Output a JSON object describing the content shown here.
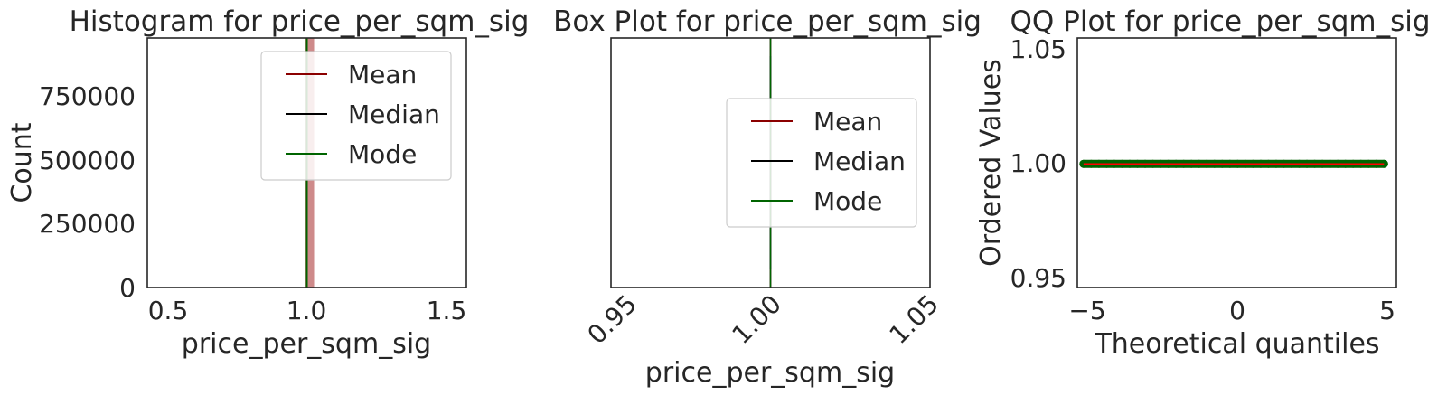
{
  "chart_data": [
    {
      "type": "bar",
      "title": "Histogram for price_per_sqm_sig",
      "xlabel": "price_per_sqm_sig",
      "ylabel": "Count",
      "xlim": [
        0.45,
        1.55
      ],
      "ylim": [
        0,
        960000
      ],
      "xticks": [
        "0.5",
        "1.0",
        "1.5"
      ],
      "yticks": [
        "0",
        "250000",
        "500000",
        "750000"
      ],
      "bins": [
        {
          "x0": 0.995,
          "x1": 1.025,
          "count": 960000
        }
      ],
      "lines": [
        {
          "name": "Mean",
          "x": 1.0,
          "color": "#8b0000"
        },
        {
          "name": "Median",
          "x": 1.0,
          "color": "#000000"
        },
        {
          "name": "Mode",
          "x": 1.0,
          "color": "#006400"
        }
      ],
      "legend": {
        "placement": "upper-right",
        "entries": [
          "Mean",
          "Median",
          "Mode"
        ]
      },
      "grid": false
    },
    {
      "type": "box",
      "title": "Box Plot for price_per_sqm_sig",
      "xlabel": "price_per_sqm_sig",
      "xlim": [
        0.95,
        1.05
      ],
      "xticks": [
        "0.95",
        "1.00",
        "1.05"
      ],
      "xtick_rotation": 45,
      "box": {
        "min": 1.0,
        "q1": 1.0,
        "median": 1.0,
        "q3": 1.0,
        "max": 1.0
      },
      "lines": [
        {
          "name": "Mean",
          "x": 1.0,
          "color": "#8b0000"
        },
        {
          "name": "Median",
          "x": 1.0,
          "color": "#000000"
        },
        {
          "name": "Mode",
          "x": 1.0,
          "color": "#006400"
        }
      ],
      "legend": {
        "placement": "center-right",
        "entries": [
          "Mean",
          "Median",
          "Mode"
        ]
      },
      "grid": false
    },
    {
      "type": "scatter",
      "title": "QQ Plot for price_per_sqm_sig",
      "xlabel": "Theoretical quantiles",
      "ylabel": "Ordered Values",
      "xlim": [
        -5.1,
        5.2
      ],
      "ylim": [
        0.945,
        1.056
      ],
      "xticks": [
        "−5",
        "0",
        "5"
      ],
      "yticks": [
        "0.95",
        "1.00",
        "1.05"
      ],
      "points_x_range": [
        -4.9,
        4.8
      ],
      "points_y": 1.0,
      "fit_line": {
        "slope": 0,
        "intercept": 1.0,
        "color": "#ff0000"
      },
      "marker_color": "#006400",
      "grid": false
    }
  ]
}
